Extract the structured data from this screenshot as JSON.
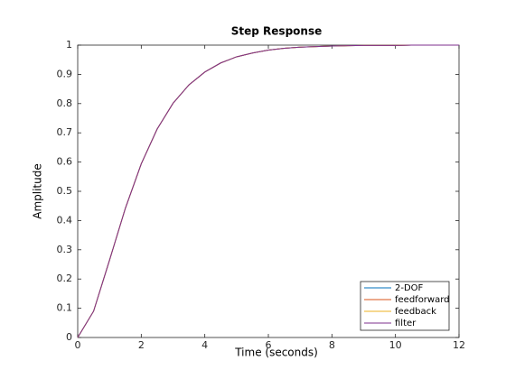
{
  "chart_data": {
    "type": "line",
    "title": "Step Response",
    "x_label": "Time (seconds)",
    "y_label": "Amplitude",
    "x": [
      0,
      0.5,
      1,
      1.5,
      2,
      2.5,
      3,
      3.5,
      4,
      4.5,
      5,
      5.5,
      6,
      6.5,
      7,
      7.5,
      8,
      8.5,
      9,
      9.5,
      10,
      10.5,
      11,
      11.5,
      12
    ],
    "series": [
      {
        "name": "2-DOF",
        "color": "#0072bd",
        "values": [
          0,
          0.09,
          0.264,
          0.442,
          0.594,
          0.713,
          0.801,
          0.864,
          0.908,
          0.939,
          0.96,
          0.973,
          0.983,
          0.989,
          0.993,
          0.995,
          0.997,
          0.998,
          0.999,
          0.999,
          0.999,
          1,
          1,
          1,
          1
        ]
      },
      {
        "name": "feedforward",
        "color": "#d95319",
        "values": [
          0,
          0.09,
          0.264,
          0.442,
          0.594,
          0.713,
          0.801,
          0.864,
          0.908,
          0.939,
          0.96,
          0.973,
          0.983,
          0.989,
          0.993,
          0.995,
          0.997,
          0.998,
          0.999,
          0.999,
          0.999,
          1,
          1,
          1,
          1
        ]
      },
      {
        "name": "feedback",
        "color": "#edb120",
        "values": [
          0,
          0.09,
          0.264,
          0.442,
          0.594,
          0.713,
          0.801,
          0.864,
          0.908,
          0.939,
          0.96,
          0.973,
          0.983,
          0.989,
          0.993,
          0.995,
          0.997,
          0.998,
          0.999,
          0.999,
          0.999,
          1,
          1,
          1,
          1
        ]
      },
      {
        "name": "filter",
        "color": "#7e2f8e",
        "values": [
          0,
          0.09,
          0.264,
          0.442,
          0.594,
          0.713,
          0.801,
          0.864,
          0.908,
          0.939,
          0.96,
          0.973,
          0.983,
          0.989,
          0.993,
          0.995,
          0.997,
          0.998,
          0.999,
          0.999,
          0.999,
          1,
          1,
          1,
          1
        ]
      }
    ],
    "xlim": [
      0,
      12
    ],
    "xticks": [
      0,
      2,
      4,
      6,
      8,
      10,
      12
    ],
    "ylim": [
      0,
      1
    ],
    "yticks": [
      0,
      0.1,
      0.2,
      0.3,
      0.4,
      0.5,
      0.6,
      0.7,
      0.8,
      0.9,
      1
    ],
    "legend": "lower right",
    "grid": false
  }
}
